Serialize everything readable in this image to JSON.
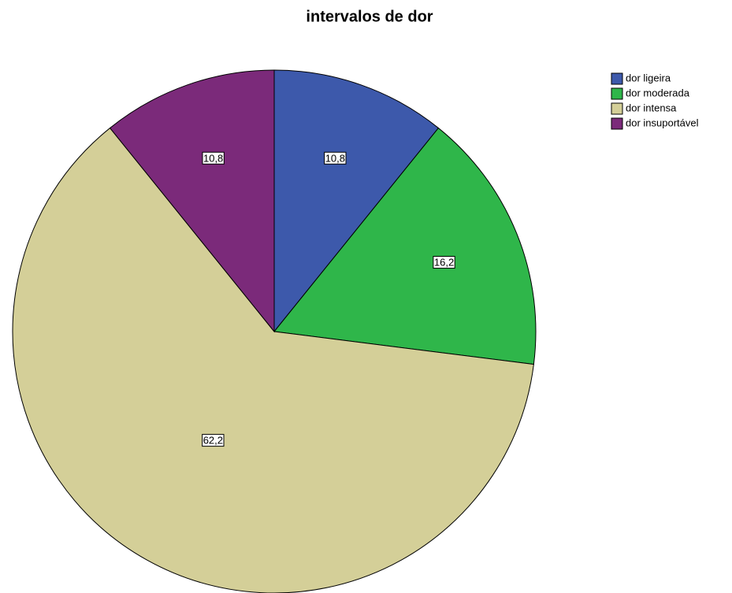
{
  "chart_data": {
    "type": "pie",
    "title": "intervalos de dor",
    "categories": [
      "dor ligeira",
      "dor moderada",
      "dor intensa",
      "dor insuportável"
    ],
    "values": [
      10.8,
      16.2,
      62.2,
      10.8
    ],
    "value_labels": [
      "10,8",
      "16,2",
      "62,2",
      "10,8"
    ],
    "colors": [
      "#3d59ab",
      "#2fb64a",
      "#d4cf98",
      "#7b2a7a"
    ],
    "legend": "top-right"
  }
}
